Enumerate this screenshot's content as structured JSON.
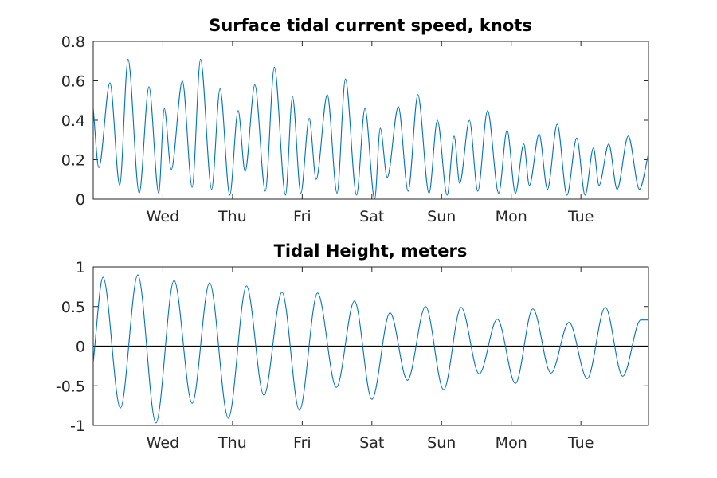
{
  "figure": {
    "background": "#ffffff"
  },
  "chart_data": [
    {
      "type": "line",
      "title": "Surface tidal current speed, knots",
      "xlabel": "",
      "ylabel": "",
      "x_unit": "days",
      "xlim": [
        0,
        7.97
      ],
      "ylim": [
        0,
        0.8
      ],
      "yticks": [
        0,
        0.2,
        0.4,
        0.6,
        0.8
      ],
      "ytick_labels": [
        "0",
        "0.2",
        "0.4",
        "0.6",
        "0.8"
      ],
      "xticks": [
        1,
        2,
        3,
        4,
        5,
        6,
        7
      ],
      "xtick_labels": [
        "Wed",
        "Thu",
        "Fri",
        "Sat",
        "Sun",
        "Mon",
        "Tue"
      ],
      "grid": false,
      "color": "#0072bd",
      "series": [
        {
          "values": [
            [
              0,
              0.46
            ],
            [
              0.08,
              0.16
            ],
            [
              0.24,
              0.59
            ],
            [
              0.38,
              0.07
            ],
            [
              0.5,
              0.71
            ],
            [
              0.66,
              0.03
            ],
            [
              0.8,
              0.57
            ],
            [
              0.94,
              0.03
            ],
            [
              1.02,
              0.46
            ],
            [
              1.12,
              0.15
            ],
            [
              1.28,
              0.6
            ],
            [
              1.42,
              0.06
            ],
            [
              1.54,
              0.71
            ],
            [
              1.7,
              0.05
            ],
            [
              1.82,
              0.56
            ],
            [
              1.96,
              0.02
            ],
            [
              2.08,
              0.45
            ],
            [
              2.18,
              0.14
            ],
            [
              2.32,
              0.58
            ],
            [
              2.47,
              0.04
            ],
            [
              2.6,
              0.67
            ],
            [
              2.76,
              0.02
            ],
            [
              2.86,
              0.52
            ],
            [
              2.98,
              0.03
            ],
            [
              3.1,
              0.41
            ],
            [
              3.2,
              0.1
            ],
            [
              3.36,
              0.53
            ],
            [
              3.5,
              0.03
            ],
            [
              3.62,
              0.61
            ],
            [
              3.78,
              0.02
            ],
            [
              3.9,
              0.46
            ],
            [
              4.04,
              0.0
            ],
            [
              4.12,
              0.36
            ],
            [
              4.22,
              0.11
            ],
            [
              4.38,
              0.47
            ],
            [
              4.52,
              0.04
            ],
            [
              4.66,
              0.53
            ],
            [
              4.82,
              0.03
            ],
            [
              4.94,
              0.4
            ],
            [
              5.08,
              0.02
            ],
            [
              5.18,
              0.32
            ],
            [
              5.26,
              0.08
            ],
            [
              5.4,
              0.4
            ],
            [
              5.52,
              0.04
            ],
            [
              5.66,
              0.45
            ],
            [
              5.82,
              0.03
            ],
            [
              5.94,
              0.35
            ],
            [
              6.06,
              0.03
            ],
            [
              6.18,
              0.28
            ],
            [
              6.26,
              0.07
            ],
            [
              6.4,
              0.33
            ],
            [
              6.52,
              0.05
            ],
            [
              6.66,
              0.38
            ],
            [
              6.8,
              0.02
            ],
            [
              6.94,
              0.31
            ],
            [
              7.06,
              0.02
            ],
            [
              7.18,
              0.26
            ],
            [
              7.26,
              0.07
            ],
            [
              7.4,
              0.28
            ],
            [
              7.52,
              0.05
            ],
            [
              7.68,
              0.32
            ],
            [
              7.84,
              0.05
            ],
            [
              7.97,
              0.23
            ]
          ]
        }
      ]
    },
    {
      "type": "line",
      "title": "Tidal Height, meters",
      "xlabel": "",
      "ylabel": "",
      "x_unit": "days",
      "xlim": [
        0,
        7.97
      ],
      "ylim": [
        -1,
        1
      ],
      "yticks": [
        -1,
        -0.5,
        0,
        0.5,
        1
      ],
      "ytick_labels": [
        "-1",
        "-0.5",
        "0",
        "0.5",
        "1"
      ],
      "xticks": [
        1,
        2,
        3,
        4,
        5,
        6,
        7
      ],
      "xtick_labels": [
        "Wed",
        "Thu",
        "Fri",
        "Sat",
        "Sun",
        "Mon",
        "Tue"
      ],
      "grid": false,
      "zero_line": true,
      "color": "#0072bd",
      "series": [
        {
          "values": [
            [
              0,
              -0.2
            ],
            [
              0.14,
              0.87
            ],
            [
              0.39,
              -0.78
            ],
            [
              0.64,
              0.9
            ],
            [
              0.9,
              -0.97
            ],
            [
              1.16,
              0.83
            ],
            [
              1.42,
              -0.72
            ],
            [
              1.67,
              0.8
            ],
            [
              1.94,
              -0.91
            ],
            [
              2.2,
              0.76
            ],
            [
              2.45,
              -0.62
            ],
            [
              2.71,
              0.68
            ],
            [
              2.96,
              -0.81
            ],
            [
              3.22,
              0.67
            ],
            [
              3.49,
              -0.52
            ],
            [
              3.75,
              0.57
            ],
            [
              4.0,
              -0.67
            ],
            [
              4.26,
              0.42
            ],
            [
              4.51,
              -0.43
            ],
            [
              4.77,
              0.5
            ],
            [
              5.03,
              -0.55
            ],
            [
              5.28,
              0.49
            ],
            [
              5.54,
              -0.35
            ],
            [
              5.8,
              0.34
            ],
            [
              6.06,
              -0.47
            ],
            [
              6.31,
              0.47
            ],
            [
              6.57,
              -0.34
            ],
            [
              6.83,
              0.3
            ],
            [
              7.09,
              -0.41
            ],
            [
              7.35,
              0.49
            ],
            [
              7.6,
              -0.38
            ],
            [
              7.86,
              0.33
            ],
            [
              7.97,
              0.33
            ]
          ]
        }
      ]
    }
  ]
}
